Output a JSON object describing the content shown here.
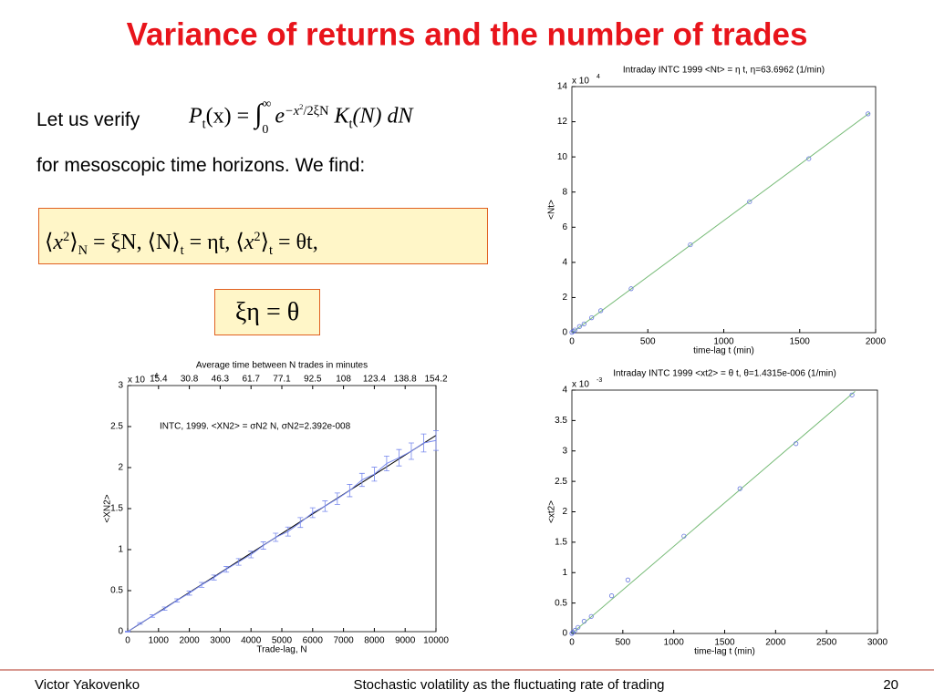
{
  "slide": {
    "title": "Variance of returns and the number of trades",
    "text1": "Let us verify",
    "text2": "for mesoscopic time horizons.  We find:",
    "formula1": [
      "P",
      "t",
      "(x) = ",
      "∫",
      "∞",
      "0",
      "e",
      "−x",
      "2",
      "/2ξN",
      "K",
      "t",
      "(N) dN"
    ],
    "formula2": [
      "⟨",
      "x",
      "2",
      "⟩",
      "N",
      " = ξN,   ⟨N⟩",
      "t",
      " = ηt,   ⟨",
      "x",
      "2",
      "⟩",
      "t",
      " = θt,"
    ],
    "formula3": "ξη = θ",
    "footer": {
      "author": "Victor Yakovenko",
      "talk": "Stochastic volatility as the fluctuating rate of trading",
      "page": 20
    }
  },
  "chart_data": [
    {
      "type": "scatter",
      "title": "Intraday INTC 1999 <Nt> = η t, η=63.6962 (1/min)",
      "xlabel": "time-lag t (min)",
      "ylabel": "<Nt>",
      "y_multiplier": {
        "base": "x 10",
        "exponent": "4"
      },
      "color": "#6677dd",
      "fit_color": "#77bb77",
      "x": [
        0,
        10,
        20,
        50,
        80,
        130,
        190,
        390,
        780,
        1170,
        1560,
        1950
      ],
      "values": [
        0.02,
        0.08,
        0.15,
        0.35,
        0.5,
        0.85,
        1.25,
        2.5,
        5.0,
        7.45,
        9.9,
        12.45
      ],
      "fit": {
        "x": [
          0,
          1960
        ],
        "values": [
          0,
          12.5
        ]
      },
      "xlim": [
        0,
        2000
      ],
      "ylim": [
        0,
        14
      ],
      "xticks": [
        0,
        500,
        1000,
        1500,
        2000
      ],
      "yticks": [
        0,
        2,
        4,
        6,
        8,
        10,
        12,
        14
      ]
    },
    {
      "type": "scatter",
      "title": "Intraday INTC 1999 <xt2> = θ t, θ=1.4315e-006 (1/min)",
      "xlabel": "time-lag t (min)",
      "ylabel": "<xt2>",
      "y_multiplier": {
        "base": "x 10",
        "exponent": "-3"
      },
      "color": "#6677dd",
      "fit_color": "#77bb77",
      "x": [
        0,
        10,
        30,
        60,
        120,
        190,
        390,
        550,
        1100,
        1650,
        2200,
        2750
      ],
      "values": [
        0,
        0.02,
        0.05,
        0.1,
        0.2,
        0.28,
        0.62,
        0.88,
        1.6,
        2.38,
        3.12,
        3.92
      ],
      "fit": {
        "x": [
          0,
          2780
        ],
        "values": [
          0,
          3.98
        ]
      },
      "xlim": [
        0,
        3000
      ],
      "ylim": [
        0,
        4
      ],
      "xticks": [
        0,
        500,
        1000,
        1500,
        2000,
        2500,
        3000
      ],
      "yticks": [
        0,
        0.5,
        1,
        1.5,
        2,
        2.5,
        3,
        3.5,
        4
      ]
    },
    {
      "type": "errorbar",
      "title": "Average time between N trades in minutes",
      "xlabel": "Trade-lag, N",
      "ylabel": "<XN2>",
      "annotation": "INTC, 1999. <XN2> = σN2 N, σN2=2.392e-008",
      "y_multiplier": {
        "base": "x 10",
        "exponent": "-4"
      },
      "color": "#7788ee",
      "fit_color": "#000000",
      "x": [
        0,
        400,
        800,
        1200,
        1600,
        2000,
        2400,
        2800,
        3200,
        3600,
        4000,
        4400,
        4800,
        5200,
        5600,
        6000,
        6400,
        6800,
        7200,
        7600,
        8000,
        8400,
        8800,
        9200,
        9600,
        10000
      ],
      "values": [
        0,
        0.1,
        0.19,
        0.28,
        0.38,
        0.47,
        0.57,
        0.66,
        0.76,
        0.85,
        0.94,
        1.05,
        1.15,
        1.22,
        1.33,
        1.45,
        1.53,
        1.62,
        1.72,
        1.85,
        1.92,
        2.05,
        2.12,
        2.2,
        2.3,
        2.33
      ],
      "errors": [
        0.005,
        0.01,
        0.015,
        0.02,
        0.02,
        0.025,
        0.03,
        0.03,
        0.035,
        0.04,
        0.04,
        0.045,
        0.05,
        0.055,
        0.06,
        0.06,
        0.065,
        0.07,
        0.075,
        0.08,
        0.085,
        0.09,
        0.1,
        0.1,
        0.11,
        0.12
      ],
      "fit": {
        "x": [
          0,
          10000
        ],
        "values": [
          0,
          2.392
        ]
      },
      "xlim": [
        0,
        10000
      ],
      "ylim": [
        0,
        3
      ],
      "xticks": [
        0,
        1000,
        2000,
        3000,
        4000,
        5000,
        6000,
        7000,
        8000,
        9000,
        10000
      ],
      "yticks": [
        0,
        0.5,
        1,
        1.5,
        2,
        2.5,
        3
      ],
      "x2ticks": [
        {
          "value": 1000,
          "label": "15.4"
        },
        {
          "value": 2000,
          "label": "30.8"
        },
        {
          "value": 3000,
          "label": "46.3"
        },
        {
          "value": 4000,
          "label": "61.7"
        },
        {
          "value": 5000,
          "label": "77.1"
        },
        {
          "value": 6000,
          "label": "92.5"
        },
        {
          "value": 7000,
          "label": "108"
        },
        {
          "value": 8000,
          "label": "123.4"
        },
        {
          "value": 9000,
          "label": "138.8"
        },
        {
          "value": 10000,
          "label": "154.2"
        }
      ]
    }
  ]
}
